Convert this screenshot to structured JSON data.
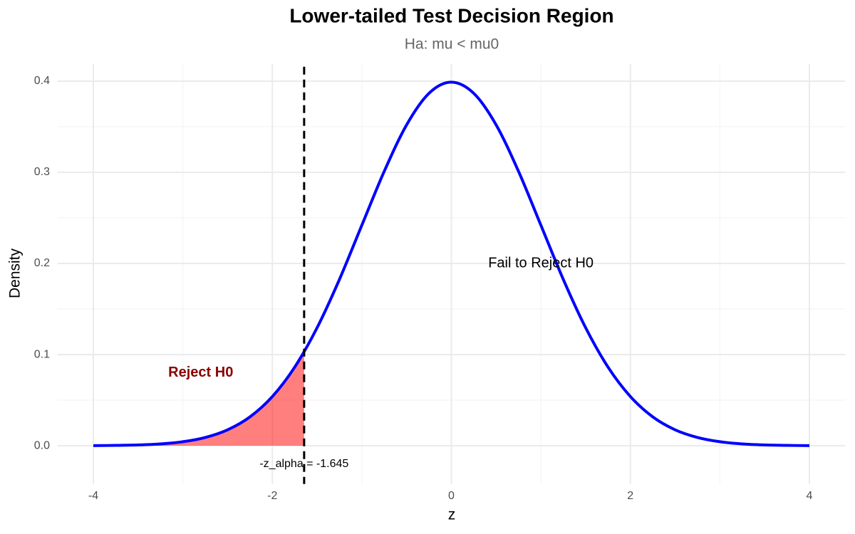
{
  "chart_data": {
    "type": "line",
    "title": "Lower-tailed Test Decision Region",
    "subtitle": "Ha: mu < mu0",
    "x_label": "z",
    "y_label": "Density",
    "xlim": [
      -4.4,
      4.4
    ],
    "ylim": [
      -0.042,
      0.419
    ],
    "xticks": [
      -4,
      -2,
      0,
      2,
      4
    ],
    "yticks": [
      {
        "value": 0,
        "label": "0.0"
      },
      0.1,
      0.2,
      0.3,
      0.4
    ],
    "xminor": [
      -3,
      -1,
      1,
      3
    ],
    "yminor": [
      0.05,
      0.15,
      0.25,
      0.35
    ],
    "grid": true,
    "series": [
      {
        "color": "#0000ff",
        "x": [
          -4,
          -3.75,
          -3.5,
          -3.25,
          -3,
          -2.75,
          -2.5,
          -2.25,
          -2,
          -1.75,
          -1.5,
          -1.25,
          -1,
          -0.75,
          -0.5,
          -0.25,
          0,
          0.25,
          0.5,
          0.75,
          1,
          1.25,
          1.5,
          1.75,
          2,
          2.25,
          2.5,
          2.75,
          3,
          3.25,
          3.5,
          3.75,
          4
        ],
        "values": [
          0.0001,
          0.0004,
          0.0009,
          0.002,
          0.0044,
          0.0091,
          0.0175,
          0.0317,
          0.054,
          0.0863,
          0.1295,
          0.1826,
          0.242,
          0.3011,
          0.3521,
          0.3867,
          0.3989,
          0.3867,
          0.3521,
          0.3011,
          0.242,
          0.1826,
          0.1295,
          0.0863,
          0.054,
          0.0317,
          0.0175,
          0.0091,
          0.0044,
          0.002,
          0.0009,
          0.0004,
          0.0001
        ]
      }
    ],
    "area": {
      "color": "#ff0000",
      "alpha": 0.5,
      "x": [
        -4,
        -3.75,
        -3.5,
        -3.25,
        -3,
        -2.75,
        -2.5,
        -2.25,
        -2,
        -1.75,
        -1.645
      ],
      "values": [
        0.0001,
        0.0004,
        0.0009,
        0.002,
        0.0044,
        0.0091,
        0.0175,
        0.0317,
        0.054,
        0.0863,
        0.1031
      ]
    },
    "vline": {
      "x": -1.645,
      "color": "#000000"
    },
    "annotations": [
      {
        "text": "Reject H0",
        "x": -2.8,
        "y": 0.08,
        "color": "#8b0000",
        "bold": true
      },
      {
        "text": "Fail to Reject H0",
        "x": 1,
        "y": 0.2,
        "color": "#000000",
        "bold": false
      },
      {
        "text": "-z_alpha = -1.645",
        "x": -1.645,
        "y": -0.02,
        "color": "#000000",
        "bold": false
      }
    ]
  }
}
